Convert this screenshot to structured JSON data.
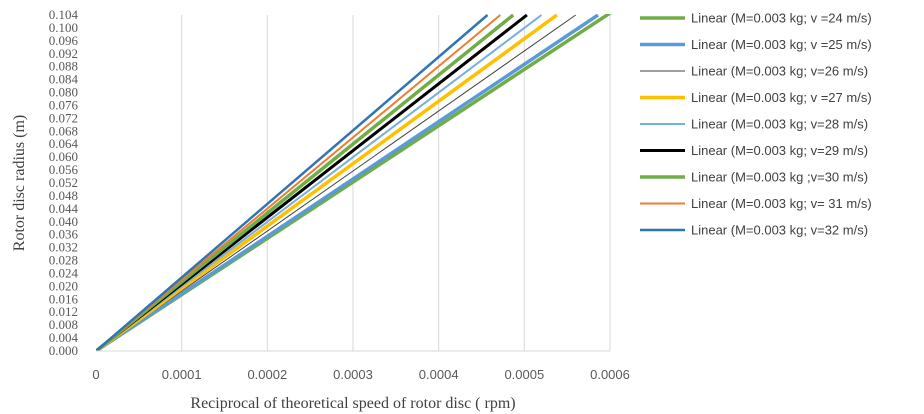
{
  "chart_data": {
    "type": "line",
    "title": "",
    "xlabel": "Reciprocal of theoretical speed of rotor disc ( rpm)",
    "ylabel": "Rotor disc radius (m)",
    "xlim": [
      0,
      0.0006
    ],
    "ylim": [
      0,
      0.104
    ],
    "x_ticks": [
      "0",
      "0.0001",
      "0.0002",
      "0.0003",
      "0.0004",
      "0.0005",
      "0.0006"
    ],
    "y_ticks": [
      "0.000",
      "0.004",
      "0.008",
      "0.012",
      "0.016",
      "0.020",
      "0.024",
      "0.028",
      "0.032",
      "0.036",
      "0.040",
      "0.044",
      "0.048",
      "0.052",
      "0.056",
      "0.060",
      "0.064",
      "0.068",
      "0.072",
      "0.076",
      "0.080",
      "0.084",
      "0.088",
      "0.092",
      "0.096",
      "0.100",
      "0.104"
    ],
    "grid": "vertical",
    "legend_position": "right",
    "series": [
      {
        "name": "Linear (M=0.003 kg; v =24 m/s)",
        "color": "#70ad47",
        "width": 3.5,
        "x": [
          0,
          0.0006
        ],
        "y": [
          0,
          0.1046
        ]
      },
      {
        "name": "Linear (M=0.003 kg; v =25 m/s)",
        "color": "#5b9bd5",
        "width": 3.5,
        "x": [
          0,
          0.000586
        ],
        "y": [
          0,
          0.104
        ]
      },
      {
        "name": "Linear (M=0.003 kg; v=26 m/s)",
        "color": "#404040",
        "width": 1,
        "x": [
          0,
          0.00056
        ],
        "y": [
          0,
          0.104
        ]
      },
      {
        "name": "Linear (M=0.003 kg; v =27 m/s)",
        "color": "#ffc000",
        "width": 3.5,
        "x": [
          0,
          0.000538
        ],
        "y": [
          0,
          0.104
        ]
      },
      {
        "name": "Linear (M=0.003 kg; v=28 m/s)",
        "color": "#75aee0",
        "width": 2,
        "x": [
          0,
          0.00052
        ],
        "y": [
          0,
          0.104
        ]
      },
      {
        "name": "Linear (M=0.003 kg; v=29 m/s)",
        "color": "#000000",
        "width": 3,
        "x": [
          0,
          0.000503
        ],
        "y": [
          0,
          0.104
        ]
      },
      {
        "name": "Linear (M=0.003 kg ;v=30 m/s)",
        "color": "#70ad47",
        "width": 3.5,
        "x": [
          0,
          0.000487
        ],
        "y": [
          0,
          0.104
        ]
      },
      {
        "name": "Linear (M=0.003 kg; v= 31 m/s)",
        "color": "#ed7d31",
        "width": 2,
        "x": [
          0,
          0.000472
        ],
        "y": [
          0,
          0.104
        ]
      },
      {
        "name": "Linear (M=0.003 kg; v=32 m/s)",
        "color": "#2e75b6",
        "width": 2.5,
        "x": [
          0,
          0.000457
        ],
        "y": [
          0,
          0.104
        ]
      }
    ]
  }
}
